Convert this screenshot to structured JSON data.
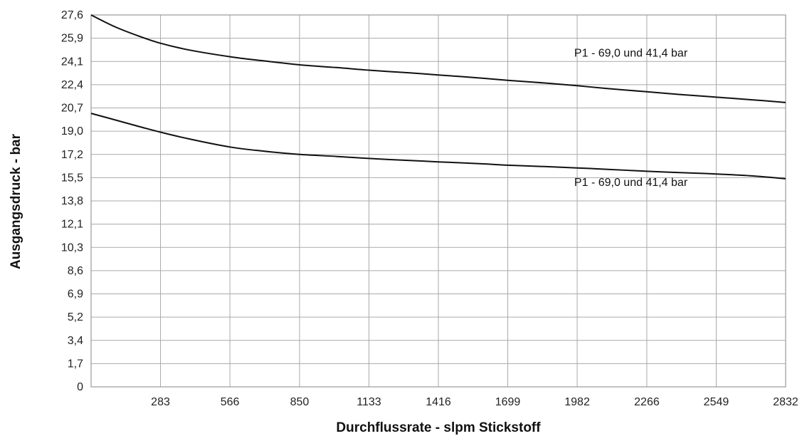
{
  "chart_data": {
    "type": "line",
    "xlabel": "Durchflussrate - slpm Stickstoff",
    "ylabel": "Ausgangsdruck - bar",
    "xlim": [
      0,
      2832
    ],
    "ylim": [
      0,
      27.6
    ],
    "grid": true,
    "x_ticks": [
      "283",
      "566",
      "850",
      "1133",
      "1416",
      "1699",
      "1982",
      "2266",
      "2549",
      "2832"
    ],
    "y_ticks": [
      "0",
      "1,7",
      "3,4",
      "5,2",
      "6,9",
      "8,6",
      "10,3",
      "12,1",
      "13,8",
      "15,5",
      "17,2",
      "19,0",
      "20,7",
      "22,4",
      "24,1",
      "25,9",
      "27,6"
    ],
    "series": [
      {
        "x": [
          0,
          100,
          200,
          283,
          400,
          566,
          700,
          850,
          1000,
          1133,
          1300,
          1416,
          1600,
          1699,
          1850,
          1982,
          2100,
          2266,
          2400,
          2549,
          2700,
          2832
        ],
        "y": [
          27.6,
          26.7,
          26.0,
          25.5,
          25.0,
          24.5,
          24.2,
          23.9,
          23.7,
          23.5,
          23.3,
          23.15,
          22.9,
          22.75,
          22.55,
          22.35,
          22.15,
          21.9,
          21.7,
          21.5,
          21.3,
          21.1
        ]
      },
      {
        "x": [
          0,
          100,
          200,
          283,
          400,
          566,
          700,
          850,
          1000,
          1133,
          1300,
          1416,
          1600,
          1699,
          1850,
          1982,
          2100,
          2266,
          2400,
          2549,
          2700,
          2832
        ],
        "y": [
          20.3,
          19.8,
          19.3,
          18.9,
          18.4,
          17.8,
          17.5,
          17.25,
          17.1,
          16.95,
          16.8,
          16.7,
          16.55,
          16.45,
          16.35,
          16.25,
          16.15,
          16.0,
          15.9,
          15.8,
          15.65,
          15.45
        ]
      }
    ],
    "annotations": [
      {
        "text": "P1 - 69,0 und 41,4 bar",
        "x": 1970,
        "y": 24.5
      },
      {
        "text": "P1 - 69,0 und 41,4 bar",
        "x": 1970,
        "y": 14.9
      }
    ]
  }
}
